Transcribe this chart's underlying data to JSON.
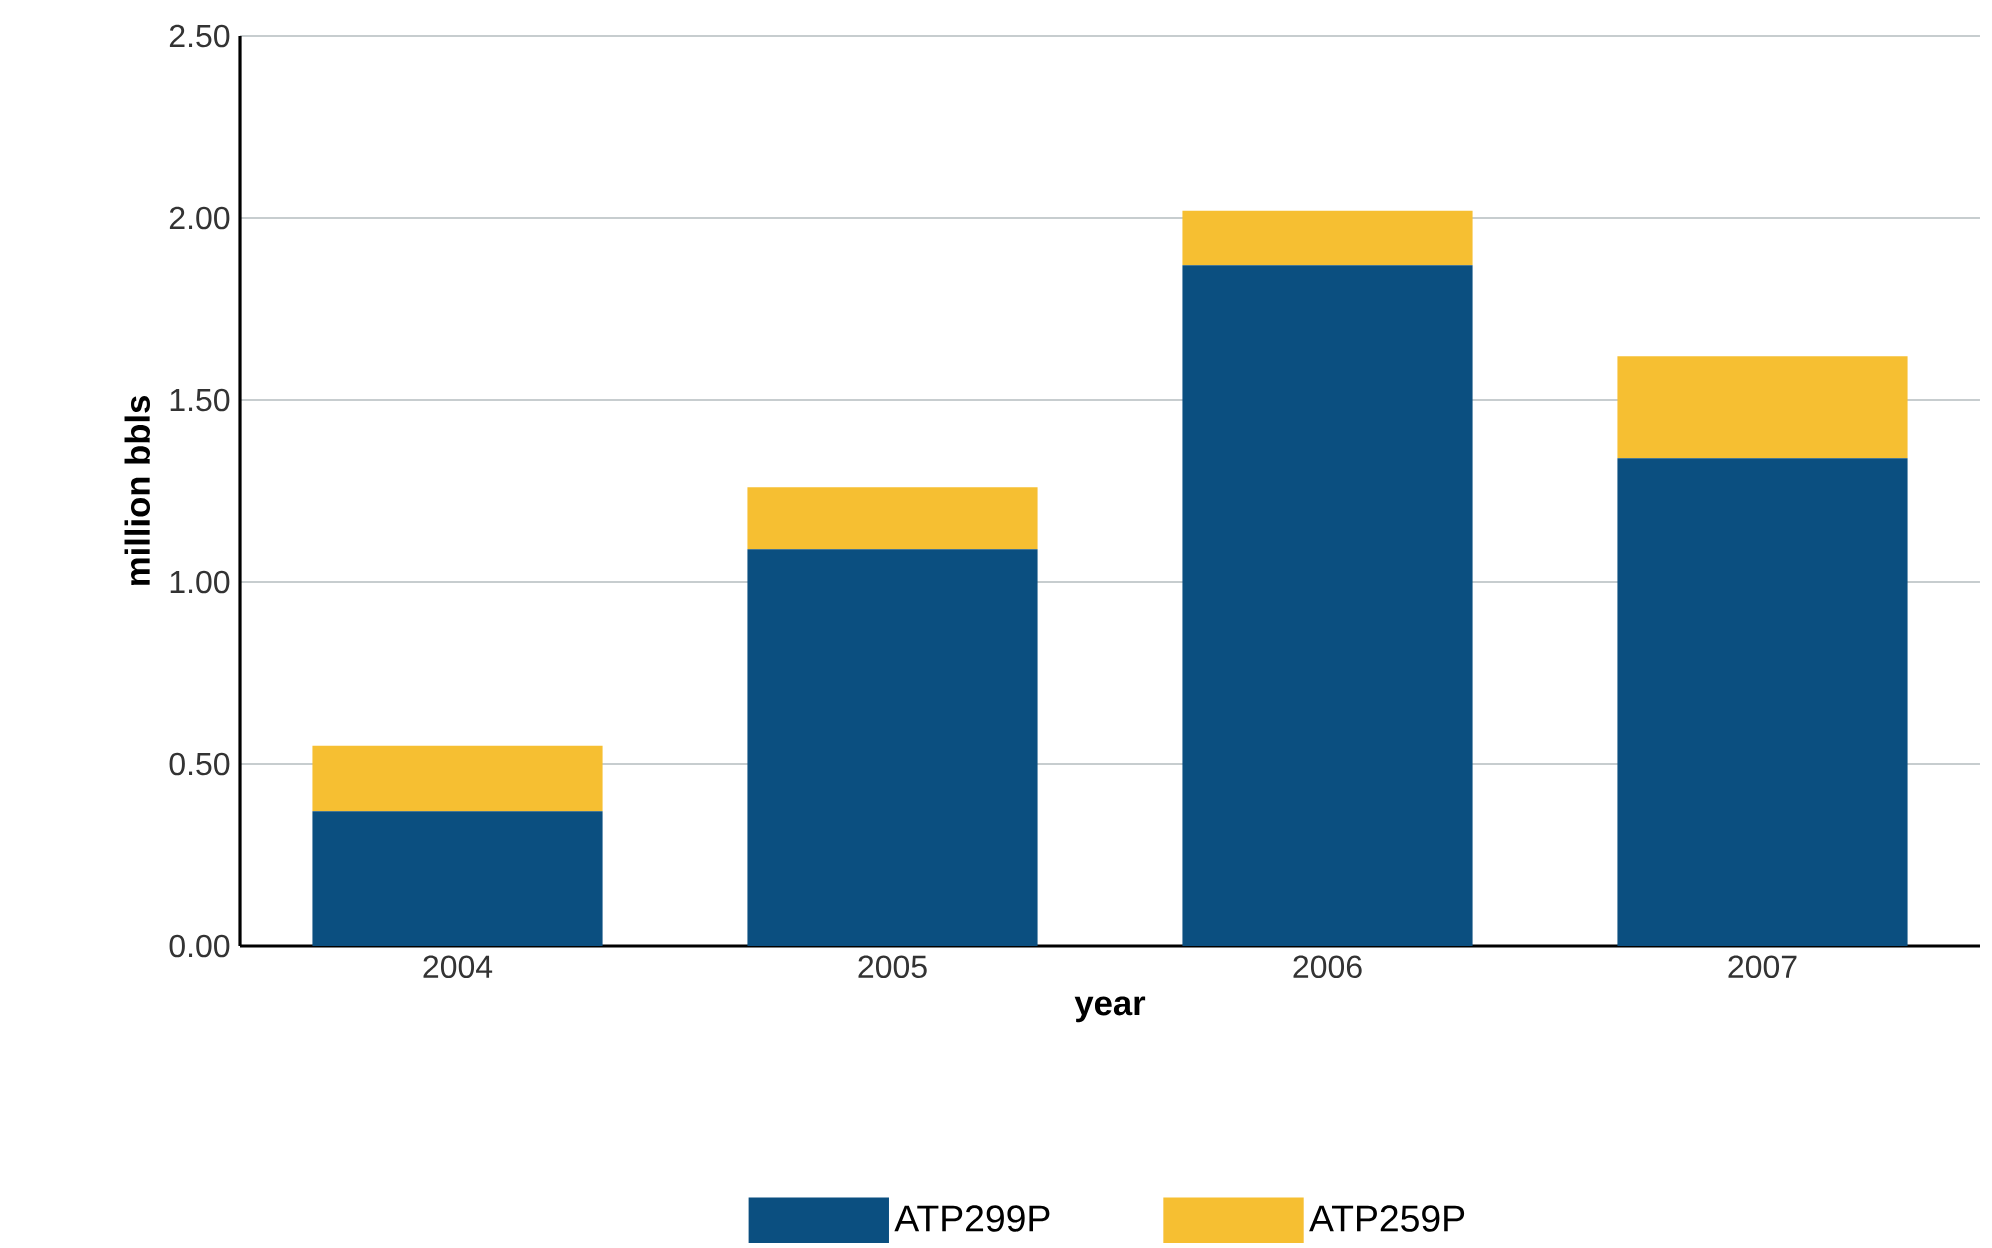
{
  "chart_data": {
    "type": "bar",
    "stacked": true,
    "xlabel": "year",
    "ylabel": "million bbls",
    "categories": [
      "2004",
      "2005",
      "2006",
      "2007"
    ],
    "series": [
      {
        "name": "ATP299P",
        "color": "#0b4f80",
        "values": [
          0.37,
          1.09,
          1.87,
          1.34
        ]
      },
      {
        "name": "ATP259P",
        "color": "#f6bf32",
        "values": [
          0.18,
          0.17,
          0.15,
          0.28
        ]
      }
    ],
    "ylim": [
      0,
      2.5
    ],
    "yticks": [
      {
        "value": 0,
        "label": "0.00"
      },
      {
        "value": 0.5,
        "label": "0.50"
      },
      {
        "value": 1,
        "label": "1.00"
      },
      {
        "value": 1.5,
        "label": "1.50"
      },
      {
        "value": 2,
        "label": "2.00"
      },
      {
        "value": 2.5,
        "label": "2.50"
      }
    ],
    "grid": "y",
    "legend": "bottom"
  }
}
